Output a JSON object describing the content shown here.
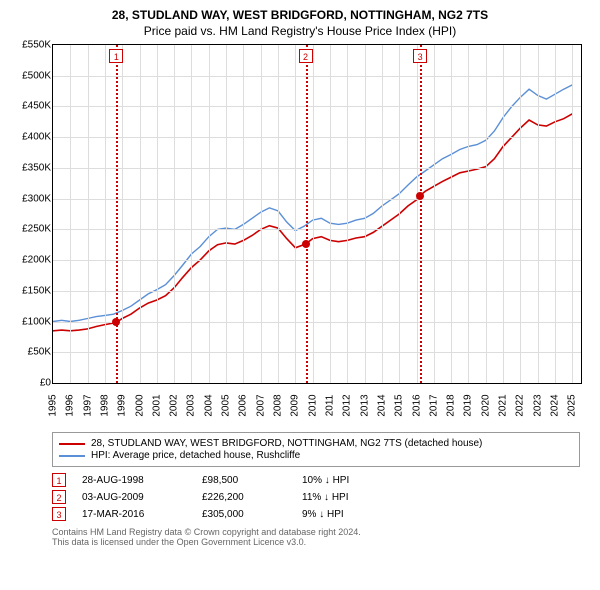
{
  "title_line1": "28, STUDLAND WAY, WEST BRIDGFORD, NOTTINGHAM, NG2 7TS",
  "title_line2": "Price paid vs. HM Land Registry's House Price Index (HPI)",
  "chart": {
    "type": "line",
    "background_color": "#ffffff",
    "grid_color": "#dddddd",
    "border_color": "#000000",
    "x_min": 1995,
    "x_max": 2025.5,
    "x_ticks": [
      1995,
      1996,
      1997,
      1998,
      1999,
      2000,
      2001,
      2002,
      2003,
      2004,
      2005,
      2006,
      2007,
      2008,
      2009,
      2010,
      2011,
      2012,
      2013,
      2014,
      2015,
      2016,
      2017,
      2018,
      2019,
      2020,
      2021,
      2022,
      2023,
      2024,
      2025
    ],
    "y_min": 0,
    "y_max": 550000,
    "y_tick_step": 50000,
    "y_tick_labels": [
      "£0",
      "£50K",
      "£100K",
      "£150K",
      "£200K",
      "£250K",
      "£300K",
      "£350K",
      "£400K",
      "£450K",
      "£500K",
      "£550K"
    ],
    "label_fontsize": 10,
    "series": [
      {
        "name": "red",
        "color": "#cc0000",
        "width": 1.6,
        "label": "28, STUDLAND WAY, WEST BRIDGFORD, NOTTINGHAM, NG2 7TS (detached house)",
        "points": [
          [
            1995.0,
            85000
          ],
          [
            1995.5,
            86000
          ],
          [
            1996.0,
            85000
          ],
          [
            1996.5,
            86000
          ],
          [
            1997.0,
            88000
          ],
          [
            1997.5,
            92000
          ],
          [
            1998.0,
            95000
          ],
          [
            1998.66,
            98500
          ],
          [
            1999.0,
            105000
          ],
          [
            1999.5,
            112000
          ],
          [
            2000.0,
            122000
          ],
          [
            2000.5,
            130000
          ],
          [
            2001.0,
            135000
          ],
          [
            2001.5,
            142000
          ],
          [
            2002.0,
            155000
          ],
          [
            2002.5,
            172000
          ],
          [
            2003.0,
            188000
          ],
          [
            2003.5,
            200000
          ],
          [
            2004.0,
            215000
          ],
          [
            2004.5,
            225000
          ],
          [
            2005.0,
            228000
          ],
          [
            2005.5,
            226000
          ],
          [
            2006.0,
            232000
          ],
          [
            2006.5,
            240000
          ],
          [
            2007.0,
            250000
          ],
          [
            2007.5,
            256000
          ],
          [
            2008.0,
            252000
          ],
          [
            2008.5,
            235000
          ],
          [
            2009.0,
            220000
          ],
          [
            2009.59,
            226200
          ],
          [
            2010.0,
            235000
          ],
          [
            2010.5,
            238000
          ],
          [
            2011.0,
            232000
          ],
          [
            2011.5,
            230000
          ],
          [
            2012.0,
            232000
          ],
          [
            2012.5,
            236000
          ],
          [
            2013.0,
            238000
          ],
          [
            2013.5,
            245000
          ],
          [
            2014.0,
            255000
          ],
          [
            2014.5,
            265000
          ],
          [
            2015.0,
            275000
          ],
          [
            2015.5,
            288000
          ],
          [
            2016.0,
            298000
          ],
          [
            2016.21,
            305000
          ],
          [
            2016.5,
            312000
          ],
          [
            2017.0,
            320000
          ],
          [
            2017.5,
            328000
          ],
          [
            2018.0,
            335000
          ],
          [
            2018.5,
            342000
          ],
          [
            2019.0,
            345000
          ],
          [
            2019.5,
            348000
          ],
          [
            2020.0,
            352000
          ],
          [
            2020.5,
            365000
          ],
          [
            2021.0,
            385000
          ],
          [
            2021.5,
            400000
          ],
          [
            2022.0,
            415000
          ],
          [
            2022.5,
            428000
          ],
          [
            2023.0,
            420000
          ],
          [
            2023.5,
            418000
          ],
          [
            2024.0,
            425000
          ],
          [
            2024.5,
            430000
          ],
          [
            2025.0,
            438000
          ]
        ]
      },
      {
        "name": "blue",
        "color": "#5b8fd6",
        "width": 1.4,
        "label": "HPI: Average price, detached house, Rushcliffe",
        "points": [
          [
            1995.0,
            100000
          ],
          [
            1995.5,
            102000
          ],
          [
            1996.0,
            100000
          ],
          [
            1996.5,
            102000
          ],
          [
            1997.0,
            105000
          ],
          [
            1997.5,
            108000
          ],
          [
            1998.0,
            110000
          ],
          [
            1998.5,
            112000
          ],
          [
            1999.0,
            118000
          ],
          [
            1999.5,
            125000
          ],
          [
            2000.0,
            135000
          ],
          [
            2000.5,
            145000
          ],
          [
            2001.0,
            152000
          ],
          [
            2001.5,
            160000
          ],
          [
            2002.0,
            175000
          ],
          [
            2002.5,
            192000
          ],
          [
            2003.0,
            210000
          ],
          [
            2003.5,
            222000
          ],
          [
            2004.0,
            238000
          ],
          [
            2004.5,
            250000
          ],
          [
            2005.0,
            252000
          ],
          [
            2005.5,
            250000
          ],
          [
            2006.0,
            258000
          ],
          [
            2006.5,
            268000
          ],
          [
            2007.0,
            278000
          ],
          [
            2007.5,
            285000
          ],
          [
            2008.0,
            280000
          ],
          [
            2008.5,
            262000
          ],
          [
            2009.0,
            248000
          ],
          [
            2009.5,
            255000
          ],
          [
            2010.0,
            265000
          ],
          [
            2010.5,
            268000
          ],
          [
            2011.0,
            260000
          ],
          [
            2011.5,
            258000
          ],
          [
            2012.0,
            260000
          ],
          [
            2012.5,
            265000
          ],
          [
            2013.0,
            268000
          ],
          [
            2013.5,
            276000
          ],
          [
            2014.0,
            288000
          ],
          [
            2014.5,
            298000
          ],
          [
            2015.0,
            308000
          ],
          [
            2015.5,
            322000
          ],
          [
            2016.0,
            335000
          ],
          [
            2016.5,
            345000
          ],
          [
            2017.0,
            355000
          ],
          [
            2017.5,
            365000
          ],
          [
            2018.0,
            372000
          ],
          [
            2018.5,
            380000
          ],
          [
            2019.0,
            385000
          ],
          [
            2019.5,
            388000
          ],
          [
            2020.0,
            395000
          ],
          [
            2020.5,
            410000
          ],
          [
            2021.0,
            432000
          ],
          [
            2021.5,
            450000
          ],
          [
            2022.0,
            465000
          ],
          [
            2022.5,
            478000
          ],
          [
            2023.0,
            468000
          ],
          [
            2023.5,
            462000
          ],
          [
            2024.0,
            470000
          ],
          [
            2024.5,
            478000
          ],
          [
            2025.0,
            485000
          ]
        ]
      }
    ],
    "markers": [
      {
        "n": "1",
        "x": 1998.66,
        "y": 98500,
        "color": "#cc0000"
      },
      {
        "n": "2",
        "x": 2009.59,
        "y": 226200,
        "color": "#cc0000"
      },
      {
        "n": "3",
        "x": 2016.21,
        "y": 305000,
        "color": "#cc0000"
      }
    ]
  },
  "events": [
    {
      "n": "1",
      "date": "28-AUG-1998",
      "price": "£98,500",
      "delta": "10% ↓ HPI",
      "color": "#cc0000"
    },
    {
      "n": "2",
      "date": "03-AUG-2009",
      "price": "£226,200",
      "delta": "11% ↓ HPI",
      "color": "#cc0000"
    },
    {
      "n": "3",
      "date": "17-MAR-2016",
      "price": "£305,000",
      "delta": "9% ↓ HPI",
      "color": "#cc0000"
    }
  ],
  "footer_line1": "Contains HM Land Registry data © Crown copyright and database right 2024.",
  "footer_line2": "This data is licensed under the Open Government Licence v3.0."
}
